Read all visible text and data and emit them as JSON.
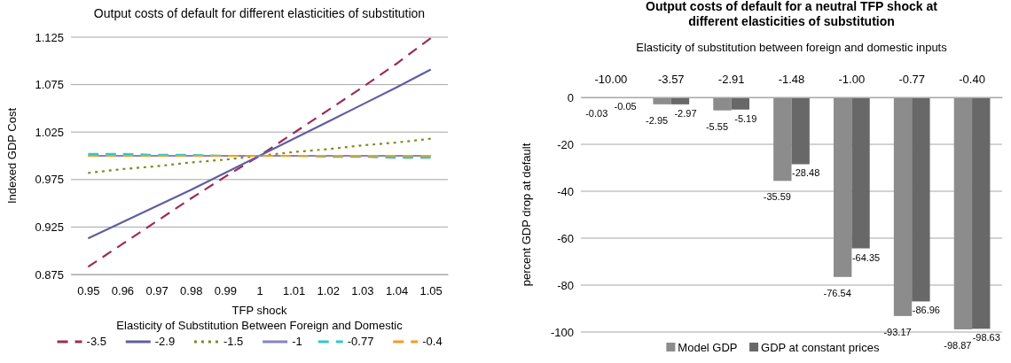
{
  "chart_data": [
    {
      "type": "line",
      "title": "Output costs of default for different elasticities of substitution",
      "xlabel": "TFP shock",
      "ylabel": "Indexed GDP Cost",
      "legend_title": "Elasticity of Substitution Between Foreign and Domestic",
      "categories": [
        "0.95",
        "0.96",
        "0.97",
        "0.98",
        "0.99",
        "1",
        "1.01",
        "1.02",
        "1.03",
        "1.04",
        "1.05"
      ],
      "ylim": [
        0.875,
        1.125
      ],
      "yticks": [
        {
          "value": 0.875,
          "label": "0.875"
        },
        {
          "value": 0.925,
          "label": "0.925"
        },
        {
          "value": 0.975,
          "label": "0.975"
        },
        {
          "value": 1.025,
          "label": "1.025"
        },
        {
          "value": 1.075,
          "label": "1.075"
        },
        {
          "value": 1.125,
          "label": "1.125"
        }
      ],
      "grid": "y",
      "legend": "bottom",
      "marker": "none",
      "series": [
        {
          "name": "-3.5",
          "color": "#9b2c5a",
          "line_style": "dashed",
          "values": [
            0.883,
            0.907,
            0.931,
            0.955,
            0.978,
            1.0,
            1.024,
            1.048,
            1.072,
            1.097,
            1.124
          ]
        },
        {
          "name": "-2.9",
          "color": "#5f5ea0",
          "line_style": "solid",
          "values": [
            0.913,
            0.93,
            0.947,
            0.964,
            0.982,
            1.0,
            1.018,
            1.036,
            1.054,
            1.072,
            1.091
          ]
        },
        {
          "name": "-1.5",
          "color": "#7f8a1e",
          "line_style": "dotted",
          "values": [
            0.982,
            0.986,
            0.989,
            0.993,
            0.996,
            1.0,
            1.004,
            1.007,
            1.011,
            1.014,
            1.018
          ]
        },
        {
          "name": "-1",
          "color": "#8583cc",
          "line_style": "solid",
          "values": [
            1.0,
            1.0,
            1.0,
            1.0,
            1.0,
            1.0,
            1.0,
            1.0,
            1.0,
            1.0,
            1.0
          ]
        },
        {
          "name": "-0.77",
          "color": "#2fc9c9",
          "line_style": "dashed",
          "values": [
            1.002,
            1.002,
            1.001,
            1.001,
            1.0,
            1.0,
            1.0,
            0.999,
            0.999,
            0.998,
            0.998
          ]
        },
        {
          "name": "-0.4",
          "color": "#f59b1e",
          "line_style": "dashed",
          "values": [
            1.0,
            1.0,
            1.0,
            1.0,
            1.0,
            1.0,
            1.0,
            1.0,
            1.0,
            1.0,
            1.0
          ]
        }
      ]
    },
    {
      "type": "bar",
      "title": "Output costs of default for a neutral TFP shock at different elasticities of substitution",
      "xlabel": "Elasticity of substitution between foreign and domestic inputs",
      "ylabel": "percent GDP drop at default",
      "categories": [
        "-10.00",
        "-3.57",
        "-2.91",
        "-1.48",
        "-1.00",
        "-0.77",
        "-0.40"
      ],
      "ylim": [
        -100,
        0
      ],
      "yticks": [
        -100,
        -80,
        -60,
        -40,
        -20,
        0
      ],
      "grid": "y",
      "legend": "bottom",
      "data_labels": true,
      "series": [
        {
          "name": "Model GDP",
          "color": "#8c8c8c",
          "values": [
            -0.03,
            -2.95,
            -5.55,
            -35.59,
            -76.54,
            -93.17,
            -98.87
          ]
        },
        {
          "name": "GDP at constant prices",
          "color": "#686868",
          "values": [
            -0.05,
            -2.97,
            -5.19,
            -28.48,
            -64.35,
            -86.96,
            -98.63
          ]
        }
      ]
    }
  ]
}
